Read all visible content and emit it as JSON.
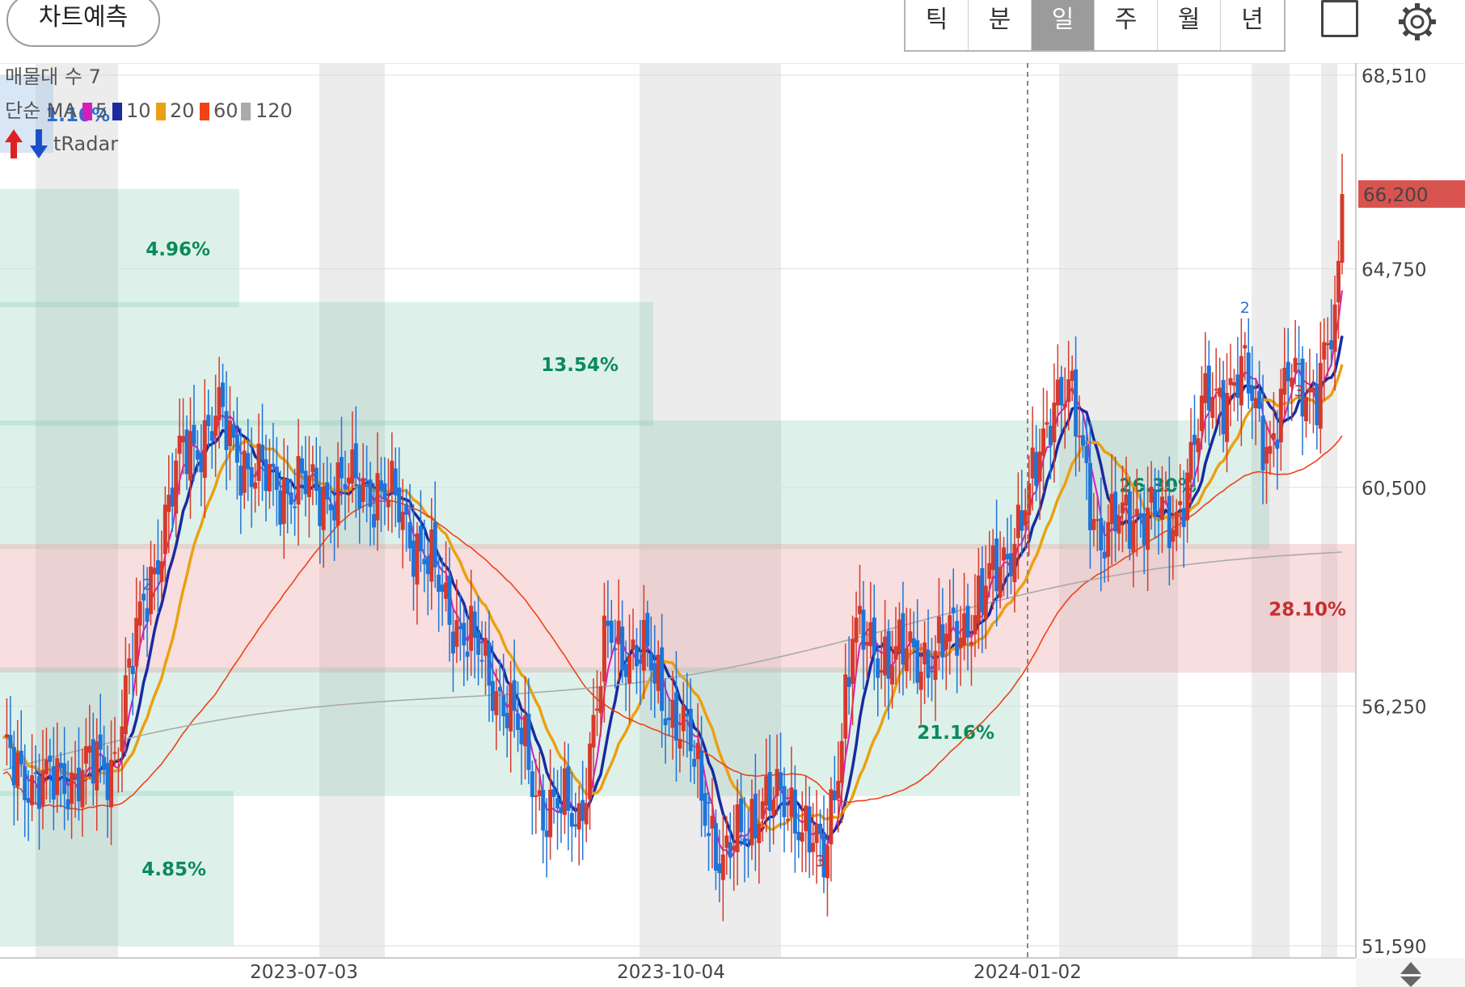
{
  "header": {
    "predict_button": "차트예측",
    "tabs": [
      {
        "label": "틱",
        "active": false
      },
      {
        "label": "분",
        "active": false
      },
      {
        "label": "일",
        "active": true
      },
      {
        "label": "주",
        "active": false
      },
      {
        "label": "월",
        "active": false
      },
      {
        "label": "년",
        "active": false
      }
    ],
    "icons": [
      "square-icon",
      "gear-icon"
    ]
  },
  "chart_data": {
    "type": "candlestick",
    "indicators": {
      "volume_profile_label": "매물대 수 7",
      "ma_label": "단순 MA",
      "ma_periods": [
        "5",
        "10",
        "20",
        "60",
        "120"
      ],
      "ma_colors": [
        "#d61fb8",
        "#1a2aa0",
        "#eba012",
        "#f04218",
        "#aaaaaa"
      ],
      "radar_label": "tRadar"
    },
    "y_axis": {
      "ticks": [
        "68,510",
        "64,750",
        "60,500",
        "56,250",
        "51,590"
      ],
      "range": [
        51590,
        68510
      ]
    },
    "x_axis": {
      "ticks": [
        "2023-07-03",
        "2023-10-04",
        "2024-01-02"
      ],
      "vertical_marker": "2024-01-02"
    },
    "current_price": {
      "label": "66,200",
      "value": 66200,
      "color": "#d9534f"
    },
    "volume_profile": [
      {
        "from": 67000,
        "to": 68510,
        "pct": "1.10%"
      },
      {
        "from": 64000,
        "to": 66300,
        "pct": "4.96%"
      },
      {
        "from": 61700,
        "to": 64100,
        "pct": "13.54%"
      },
      {
        "from": 59300,
        "to": 61800,
        "pct": "26.30%",
        "color": "#09875f"
      },
      {
        "from": 56900,
        "to": 59400,
        "pct": "28.10%",
        "highlight": true
      },
      {
        "from": 54500,
        "to": 57000,
        "pct": "21.16%"
      },
      {
        "from": 51590,
        "to": 54600,
        "pct": "4.85%"
      }
    ],
    "series_summary": {
      "start_close": 55200,
      "low": 52350,
      "high": 67000,
      "last_close": 66200,
      "ma120_last": 59100,
      "ma60_last": 61700
    }
  }
}
